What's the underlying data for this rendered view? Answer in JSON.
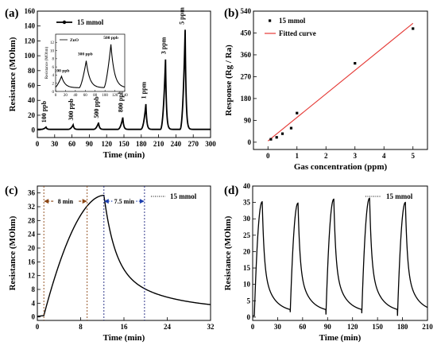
{
  "chart_data": [
    {
      "id": "a",
      "type": "line",
      "panel_label": "(a)",
      "xlabel": "Time (min)",
      "ylabel": "Resistance (MOhm)",
      "xlim": [
        0,
        300
      ],
      "ylim": [
        -10,
        160
      ],
      "xticks": [
        0,
        30,
        60,
        90,
        120,
        150,
        180,
        210,
        240,
        270,
        300
      ],
      "yticks": [
        0,
        20,
        40,
        60,
        80,
        100,
        120,
        140,
        160
      ],
      "legend": "15 mmol",
      "series": [
        {
          "name": "15 mmol",
          "baseline": 1,
          "pulses": [
            {
              "t": 15,
              "peak": 4
            },
            {
              "t": 62,
              "peak": 7
            },
            {
              "t": 106,
              "peak": 10
            },
            {
              "t": 148,
              "peak": 17
            },
            {
              "t": 188,
              "peak": 35
            },
            {
              "t": 222,
              "peak": 95
            },
            {
              "t": 256,
              "peak": 135
            }
          ]
        }
      ],
      "annotations": [
        {
          "text": "100 ppb",
          "x": 15,
          "y": 10
        },
        {
          "text": "300 ppb",
          "x": 62,
          "y": 13
        },
        {
          "text": "500 ppb",
          "x": 106,
          "y": 16
        },
        {
          "text": "800 ppb",
          "x": 148,
          "y": 24
        },
        {
          "text": "1 ppm",
          "x": 188,
          "y": 42
        },
        {
          "text": "3 ppm",
          "x": 222,
          "y": 102
        },
        {
          "text": "5 ppm",
          "x": 254,
          "y": 142
        }
      ],
      "inset": {
        "legend": "ZnO",
        "ylabel": "Resistance (MOhm)",
        "xlim": [
          0,
          140
        ],
        "ylim": [
          0,
          14
        ],
        "xticks": [
          0,
          20,
          40,
          60,
          80,
          100,
          120,
          140
        ],
        "yticks": [
          0,
          2,
          4,
          6,
          8,
          10,
          12
        ],
        "pulses": [
          {
            "t": 12,
            "peak": 3.7
          },
          {
            "t": 62,
            "peak": 7.5
          },
          {
            "t": 112,
            "peak": 11.5
          }
        ],
        "annotations": [
          {
            "text": "100 ppb",
            "x": 13,
            "y": 4.8
          },
          {
            "text": "300 ppb",
            "x": 60,
            "y": 8.8
          },
          {
            "text": "500 ppb",
            "x": 112,
            "y": 12.8
          }
        ]
      }
    },
    {
      "id": "b",
      "type": "scatter",
      "panel_label": "(b)",
      "xlabel": "Gas concentration (ppm)",
      "ylabel": "Response (Rg / Ra)",
      "xlim": [
        -0.5,
        5.5
      ],
      "ylim": [
        -30,
        540
      ],
      "xticks": [
        0,
        1,
        2,
        3,
        4,
        5
      ],
      "yticks": [
        0,
        90,
        180,
        270,
        360,
        450,
        540
      ],
      "legend": [
        "15 mmol",
        "Fitted curve"
      ],
      "points": [
        {
          "x": 0.1,
          "y": 12
        },
        {
          "x": 0.3,
          "y": 20
        },
        {
          "x": 0.5,
          "y": 35
        },
        {
          "x": 0.8,
          "y": 58
        },
        {
          "x": 1.0,
          "y": 120
        },
        {
          "x": 3.0,
          "y": 325
        },
        {
          "x": 5.0,
          "y": 468
        }
      ],
      "fit": {
        "x": [
          0,
          5
        ],
        "y": [
          5,
          490
        ]
      }
    },
    {
      "id": "c",
      "type": "line",
      "panel_label": "(c)",
      "xlabel": "Time (min)",
      "ylabel": "Resistance (MOhm)",
      "xlim": [
        0,
        32
      ],
      "ylim": [
        -1,
        38
      ],
      "xticks": [
        0,
        8,
        16,
        24,
        32
      ],
      "yticks": [
        0,
        4,
        8,
        12,
        16,
        20,
        24,
        28,
        32,
        36
      ],
      "legend": "15 mmol",
      "series": [
        {
          "name": "15 mmol",
          "rise_start": 1.2,
          "peak_time": 12.3,
          "peak": 35.3,
          "tail_end": 2.0
        }
      ],
      "markers": [
        {
          "x": 1.2,
          "color": "#8B4513"
        },
        {
          "x": 9.2,
          "color": "#8B4513"
        },
        {
          "x": 12.3,
          "color": "#1a237e"
        },
        {
          "x": 19.8,
          "color": "#1a237e"
        }
      ],
      "arrows": [
        {
          "text": "8 min",
          "x1": 1.2,
          "x2": 9.2,
          "y": 33.6,
          "color": "#8B4513"
        },
        {
          "text": "7.5 min",
          "x1": 12.3,
          "x2": 19.8,
          "y": 33.6,
          "color": "#1e40af"
        }
      ]
    },
    {
      "id": "d",
      "type": "line",
      "panel_label": "(d)",
      "xlabel": "Time (min)",
      "ylabel": "Resistance (MOhm)",
      "xlim": [
        0,
        210
      ],
      "ylim": [
        -1,
        40
      ],
      "xticks": [
        0,
        30,
        60,
        90,
        120,
        150,
        180,
        210
      ],
      "yticks": [
        0,
        5,
        10,
        15,
        20,
        25,
        30,
        35,
        40
      ],
      "legend": "15 mmol",
      "series": [
        {
          "name": "15 mmol",
          "cycles": [
            {
              "start": 2,
              "peak": 35.2,
              "end_value": 1.5
            },
            {
              "start": 45,
              "peak": 34.8,
              "end_value": 1.5
            },
            {
              "start": 88,
              "peak": 36.0,
              "end_value": 1.5
            },
            {
              "start": 131,
              "peak": 36.3,
              "end_value": 1.5
            },
            {
              "start": 174,
              "peak": 35.0,
              "end_value": 1.5
            }
          ]
        }
      ]
    }
  ]
}
